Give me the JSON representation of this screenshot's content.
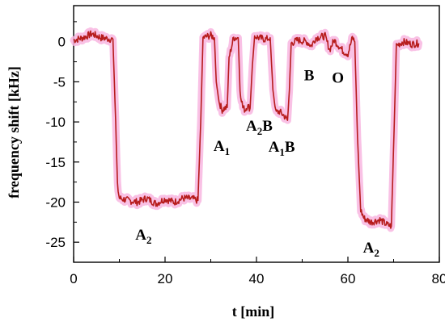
{
  "chart_data": {
    "type": "line",
    "title": "",
    "xlabel": "t [min]",
    "ylabel": "frequency shift [kHz]",
    "xlim": [
      0,
      80
    ],
    "ylim": [
      -27.5,
      4.5
    ],
    "grid": false,
    "xticks": [
      0,
      20,
      40,
      60,
      80
    ],
    "yticks": [
      0,
      -5,
      -10,
      -15,
      -20,
      -25
    ],
    "series": [
      {
        "name": "",
        "color": "#b71c1c",
        "glow_color": "#f8b6e0",
        "x": [
          0,
          2,
          4,
          6,
          8.6,
          9.2,
          9.6,
          10,
          12,
          14,
          16,
          18,
          20,
          22,
          24,
          26,
          27.2,
          27.8,
          28.3,
          30,
          30.8,
          31.2,
          31.8,
          32.5,
          33,
          33.6,
          34,
          35,
          36,
          36.4,
          37,
          37.5,
          38,
          38.6,
          39.1,
          39.6,
          40.5,
          42,
          43,
          43.6,
          44.2,
          45,
          46,
          46.8,
          47.2,
          47.6,
          49,
          51,
          52,
          53,
          55,
          56,
          57,
          58,
          59,
          60,
          61,
          61.5,
          62.1,
          62.8,
          63.5,
          65,
          67,
          68.5,
          69.5,
          70.1,
          70.6,
          72,
          74,
          75.5
        ],
        "y": [
          0.2,
          0.5,
          1,
          0.5,
          0.3,
          -10,
          -18,
          -19.5,
          -19.8,
          -20,
          -19.5,
          -20.2,
          -19.6,
          -20,
          -19.5,
          -19.6,
          -19.8,
          -10,
          0.5,
          0.8,
          0.5,
          -5,
          -7.5,
          -8.5,
          -8.3,
          -8.2,
          -2,
          0.5,
          0.5,
          -6,
          -8.2,
          -8.5,
          -8,
          -8.3,
          -3,
          0.7,
          0.5,
          0.3,
          0.5,
          -6,
          -8.8,
          -8.7,
          -9.2,
          -9.8,
          -6,
          -0.2,
          0.2,
          0,
          -0.5,
          0.5,
          0.7,
          -1,
          0.2,
          -0.5,
          -1.2,
          -1.5,
          0.5,
          0,
          -12,
          -21,
          -22,
          -22.5,
          -22.2,
          -22.8,
          -23,
          -11,
          -0.5,
          0,
          -0.3,
          -0.2
        ]
      }
    ],
    "annotations": [
      {
        "main": "A",
        "sub": "2",
        "after": "",
        "x": 13.5,
        "y": -24.7
      },
      {
        "main": "A",
        "sub": "1",
        "after": "",
        "x": 30.6,
        "y": -13.6
      },
      {
        "main": "A",
        "sub": "2",
        "after": "B",
        "x": 37.7,
        "y": -11.1
      },
      {
        "main": "A",
        "sub": "1",
        "after": "B",
        "x": 42.6,
        "y": -13.7
      },
      {
        "main": "B",
        "sub": "",
        "after": "",
        "x": 50.4,
        "y": -4.8
      },
      {
        "main": "O",
        "sub": "",
        "after": "",
        "x": 56.5,
        "y": -5.1
      },
      {
        "main": "A",
        "sub": "2",
        "after": "",
        "x": 63.3,
        "y": -26.3
      }
    ]
  }
}
